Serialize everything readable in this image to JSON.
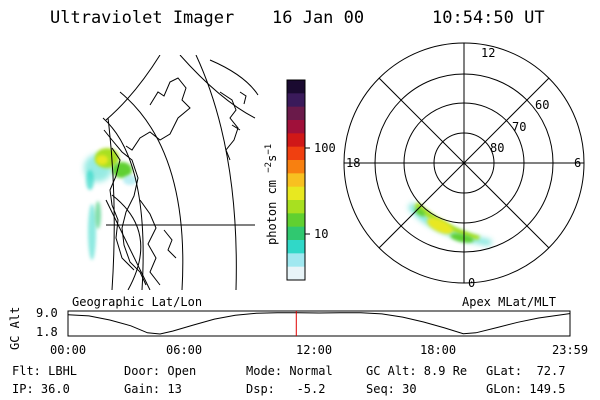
{
  "header": {
    "title": "Ultraviolet Imager",
    "date": "16 Jan 00",
    "time": "10:54:50 UT"
  },
  "geo_panel": {
    "label": "Geographic Lat/Lon"
  },
  "polar_panel": {
    "label": "Apex MLat/MLT",
    "mlt_labels": [
      "12",
      "18",
      "6",
      "0"
    ],
    "lat_labels": [
      "60",
      "70",
      "80"
    ]
  },
  "colorbar": {
    "unit_label": "photon cm",
    "unit_exp1": "−2",
    "unit_s": "s",
    "unit_exp2": "−1",
    "tick_labels": [
      "100",
      "10"
    ],
    "colors": [
      "#1a0a30",
      "#3a1a5a",
      "#6a1a4a",
      "#a0103a",
      "#d01818",
      "#f04010",
      "#f88010",
      "#f8c020",
      "#e8e820",
      "#a8e020",
      "#60d030",
      "#30c870",
      "#30d8c8",
      "#a0e8f0",
      "#e8f4f8"
    ]
  },
  "timeline": {
    "y_axis_label": "GC Alt",
    "y_ticks": [
      "9.0",
      "1.8"
    ],
    "x_ticks": [
      "00:00",
      "06:00",
      "12:00",
      "18:00",
      "23:59"
    ],
    "current_time_hours": 10.914,
    "orbit_profile": [
      [
        0,
        8.4
      ],
      [
        1,
        8.0
      ],
      [
        2,
        6.6
      ],
      [
        3,
        4.6
      ],
      [
        3.8,
        2.2
      ],
      [
        4.4,
        1.8
      ],
      [
        5,
        2.8
      ],
      [
        6,
        4.9
      ],
      [
        7,
        6.9
      ],
      [
        8,
        8.2
      ],
      [
        9,
        8.9
      ],
      [
        10,
        9.1
      ],
      [
        11,
        9.1
      ],
      [
        12,
        9.0
      ],
      [
        13,
        9.1
      ],
      [
        14,
        9.1
      ],
      [
        15,
        8.7
      ],
      [
        16,
        7.6
      ],
      [
        17,
        5.9
      ],
      [
        18,
        3.9
      ],
      [
        18.9,
        1.9
      ],
      [
        19.5,
        2.2
      ],
      [
        20.5,
        4.0
      ],
      [
        21.5,
        5.8
      ],
      [
        22.5,
        7.3
      ],
      [
        23.98,
        8.8
      ]
    ],
    "marker_color": "#e00000"
  },
  "info": {
    "filter": "Flt: LBHL",
    "ip": "IP: 36.0",
    "door": "Door: Open",
    "gain": "Gain: 13",
    "mode": "Mode: Normal",
    "dsp": "Dsp:   -5.2",
    "gc_alt": "GC Alt: 8.9 Re",
    "seq": "Seq: 30",
    "glat": "GLat:  72.7",
    "glon": "GLon: 149.5"
  }
}
